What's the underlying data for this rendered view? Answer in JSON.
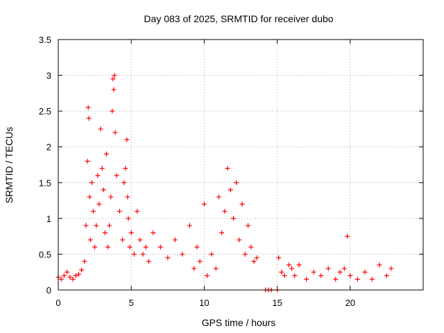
{
  "chart_data": {
    "type": "scatter",
    "title": "Day 083 of 2025, SRMTID for receiver dubo",
    "xlabel": "GPS time / hours",
    "ylabel": "SRMTID / TECUs",
    "xlim": [
      0,
      25
    ],
    "ylim": [
      0,
      3.5
    ],
    "grid": true,
    "marker": "+",
    "marker_color": "#ff0000",
    "x_ticks": [
      {
        "value": 0,
        "label": "0"
      },
      {
        "value": 5,
        "label": "5"
      },
      {
        "value": 10,
        "label": "10"
      },
      {
        "value": 15,
        "label": "15"
      },
      {
        "value": 20,
        "label": "20"
      }
    ],
    "y_ticks": [
      {
        "value": 0,
        "label": "0"
      },
      {
        "value": 0.5,
        "label": "0.5"
      },
      {
        "value": 1,
        "label": "1"
      },
      {
        "value": 1.5,
        "label": "1.5"
      },
      {
        "value": 2,
        "label": "2"
      },
      {
        "value": 2.5,
        "label": "2.5"
      },
      {
        "value": 3,
        "label": "3"
      },
      {
        "value": 3.5,
        "label": "3.5"
      }
    ],
    "series": [
      {
        "name": "SRMTID",
        "x": [
          0.0,
          0.2,
          0.4,
          0.6,
          0.8,
          1.0,
          1.2,
          1.4,
          1.6,
          1.8,
          1.9,
          2.0,
          2.05,
          2.1,
          2.15,
          2.2,
          2.3,
          2.4,
          2.5,
          2.6,
          2.7,
          2.8,
          2.9,
          3.0,
          3.1,
          3.2,
          3.3,
          3.4,
          3.5,
          3.6,
          3.7,
          3.75,
          3.8,
          3.85,
          3.9,
          4.0,
          4.2,
          4.4,
          4.5,
          4.6,
          4.7,
          4.75,
          4.8,
          4.9,
          5.0,
          5.2,
          5.4,
          5.6,
          5.8,
          6.0,
          6.2,
          6.5,
          7.0,
          7.5,
          8.0,
          8.5,
          9.0,
          9.3,
          9.5,
          9.7,
          10.0,
          10.2,
          10.5,
          10.8,
          11.0,
          11.2,
          11.4,
          11.6,
          11.8,
          12.0,
          12.2,
          12.4,
          12.6,
          12.8,
          13.0,
          13.2,
          13.4,
          13.6,
          14.2,
          14.4,
          14.6,
          15.0,
          15.1,
          15.3,
          15.5,
          15.8,
          16.0,
          16.2,
          16.5,
          17.0,
          17.5,
          18.0,
          18.5,
          19.0,
          19.3,
          19.6,
          19.8,
          20.0,
          20.5,
          21.0,
          21.5,
          22.0,
          22.5,
          22.8
        ],
        "y": [
          0.18,
          0.15,
          0.2,
          0.25,
          0.18,
          0.15,
          0.2,
          0.22,
          0.28,
          0.4,
          0.9,
          1.8,
          2.55,
          2.4,
          1.3,
          0.7,
          1.5,
          1.1,
          0.6,
          0.9,
          1.6,
          1.2,
          2.25,
          1.7,
          1.4,
          0.8,
          1.9,
          0.6,
          0.9,
          1.3,
          2.5,
          2.95,
          2.8,
          3.0,
          2.2,
          1.6,
          1.1,
          0.7,
          1.5,
          1.7,
          2.1,
          1.3,
          1.0,
          0.6,
          0.8,
          0.5,
          1.1,
          0.7,
          0.5,
          0.6,
          0.4,
          0.8,
          0.6,
          0.45,
          0.7,
          0.5,
          0.9,
          0.3,
          0.6,
          0.4,
          1.2,
          0.2,
          0.5,
          0.3,
          1.3,
          0.8,
          1.1,
          1.7,
          1.4,
          1.0,
          1.5,
          0.7,
          1.2,
          0.5,
          0.9,
          0.6,
          0.4,
          0.45,
          0.0,
          0.0,
          0.0,
          0.0,
          0.45,
          0.25,
          0.2,
          0.35,
          0.3,
          0.2,
          0.35,
          0.15,
          0.25,
          0.2,
          0.3,
          0.15,
          0.25,
          0.3,
          0.75,
          0.2,
          0.15,
          0.25,
          0.15,
          0.35,
          0.2,
          0.3
        ]
      }
    ]
  }
}
